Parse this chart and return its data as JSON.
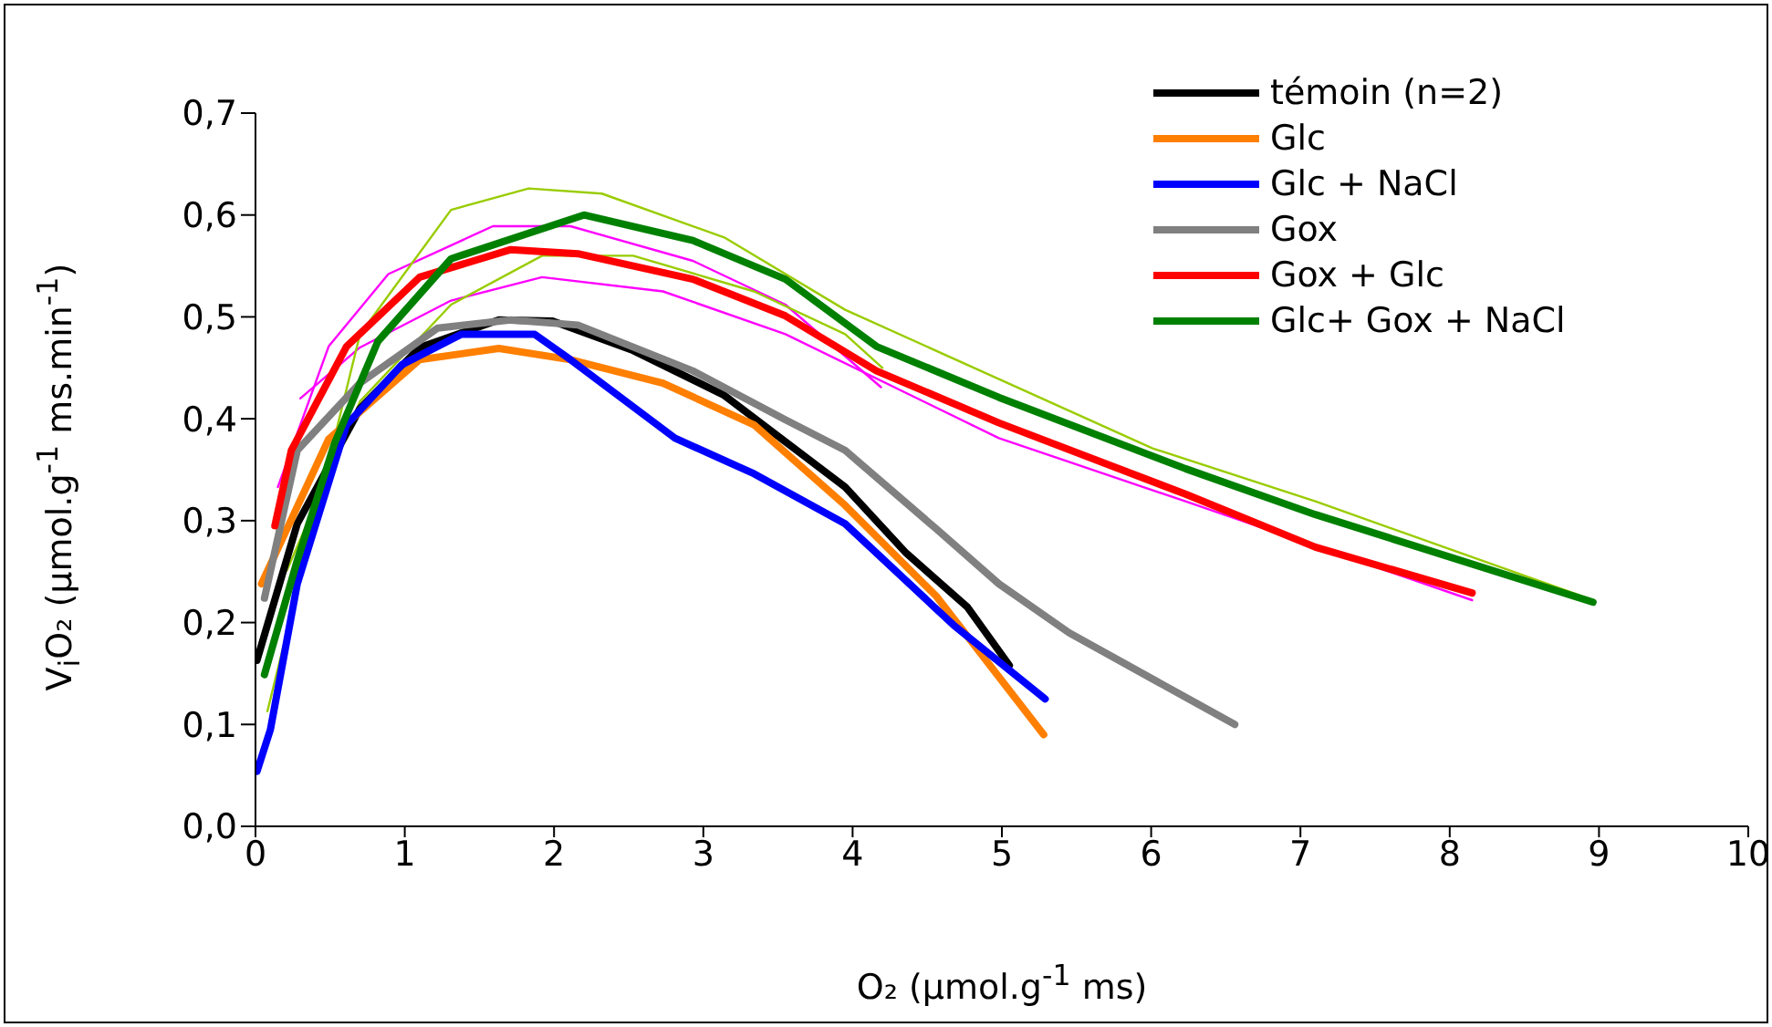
{
  "chart_data": {
    "type": "line",
    "xlabel": "O₂ (µmol.g$^{-1}$ ms)",
    "ylabel": "V$_{i}$O₂ (µmol.g$^{-1}$ ms.min$^{-1}$)",
    "xlim": [
      0,
      10
    ],
    "xticks": [
      0,
      1,
      2,
      3,
      4,
      5,
      6,
      7,
      8,
      9,
      10
    ],
    "ylim": [
      0,
      0.7
    ],
    "yticks": [
      {
        "value": 0,
        "label": "0,0"
      },
      {
        "value": 0.1,
        "label": "0,1"
      },
      {
        "value": 0.2,
        "label": "0,2"
      },
      {
        "value": 0.3,
        "label": "0,3"
      },
      {
        "value": 0.4,
        "label": "0,4"
      },
      {
        "value": 0.5,
        "label": "0,5"
      },
      {
        "value": 0.6,
        "label": "0,6"
      },
      {
        "value": 0.7,
        "label": "0,7"
      }
    ],
    "grid": false,
    "legend": "top right",
    "marker": "none",
    "line_style": "solid",
    "series": [
      {
        "color": "#ff00ff",
        "x": [
          0.15,
          0.49,
          0.89,
          1.59,
          2.11,
          2.93,
          3.55,
          4.19
        ],
        "values": [
          0.333,
          0.471,
          0.542,
          0.589,
          0.589,
          0.555,
          0.512,
          0.431
        ]
      },
      {
        "color": "#ff00ff",
        "x": [
          0.3,
          0.7,
          1.31,
          1.92,
          2.73,
          3.55,
          4.98,
          6.23,
          8.15
        ],
        "values": [
          0.42,
          0.47,
          0.516,
          0.539,
          0.525,
          0.483,
          0.381,
          0.319,
          0.222
        ]
      },
      {
        "color": "#99cc00",
        "x": [
          0.08,
          0.7,
          1.31,
          1.83,
          2.32,
          3.14,
          3.95,
          4.98,
          6.01,
          7.1,
          8.96
        ],
        "values": [
          0.113,
          0.483,
          0.605,
          0.626,
          0.621,
          0.578,
          0.507,
          0.439,
          0.371,
          0.319,
          0.222
        ]
      },
      {
        "color": "#99cc00",
        "x": [
          0.21,
          0.7,
          1.31,
          1.92,
          2.53,
          3.34,
          3.95,
          4.2
        ],
        "values": [
          0.251,
          0.417,
          0.512,
          0.56,
          0.56,
          0.525,
          0.483,
          0.45
        ]
      },
      {
        "name": "témoin (n=2)",
        "color": "#000000",
        "x": [
          0.01,
          0.28,
          0.7,
          1.1,
          1.63,
          1.99,
          2.53,
          3.14,
          3.95,
          4.36,
          4.77,
          5.05
        ],
        "values": [
          0.163,
          0.297,
          0.41,
          0.47,
          0.497,
          0.496,
          0.467,
          0.423,
          0.333,
          0.268,
          0.215,
          0.158
        ]
      },
      {
        "name": "Glc",
        "color": "#ff7f00",
        "x": [
          0.04,
          0.49,
          1.1,
          1.63,
          2.11,
          2.73,
          3.34,
          3.95,
          4.56,
          5.28
        ],
        "values": [
          0.238,
          0.38,
          0.458,
          0.469,
          0.458,
          0.435,
          0.394,
          0.315,
          0.226,
          0.09
        ]
      },
      {
        "name": "Glc + NaCl",
        "color": "#0000ff",
        "x": [
          0.01,
          0.1,
          0.28,
          0.61,
          0.98,
          1.38,
          1.87,
          2.11,
          2.81,
          3.34,
          3.95,
          4.68,
          5.29
        ],
        "values": [
          0.054,
          0.095,
          0.238,
          0.394,
          0.453,
          0.483,
          0.483,
          0.458,
          0.381,
          0.346,
          0.297,
          0.197,
          0.125
        ]
      },
      {
        "name": "Gox",
        "color": "#808080",
        "x": [
          0.06,
          0.28,
          0.7,
          1.22,
          1.71,
          2.16,
          2.93,
          3.55,
          3.95,
          4.56,
          4.98,
          5.45,
          6.56
        ],
        "values": [
          0.224,
          0.369,
          0.435,
          0.489,
          0.497,
          0.492,
          0.447,
          0.399,
          0.369,
          0.292,
          0.238,
          0.19,
          0.1
        ]
      },
      {
        "name": "Gox + Glc",
        "color": "#ff0000",
        "x": [
          0.13,
          0.24,
          0.61,
          1.1,
          1.71,
          2.16,
          2.93,
          3.55,
          4.16,
          4.98,
          6.23,
          7.1,
          8.15
        ],
        "values": [
          0.295,
          0.369,
          0.471,
          0.539,
          0.566,
          0.562,
          0.537,
          0.501,
          0.447,
          0.396,
          0.326,
          0.274,
          0.229
        ]
      },
      {
        "name": "Glc+ Gox + NaCl",
        "color": "#008000",
        "x": [
          0.06,
          0.28,
          0.53,
          0.82,
          1.31,
          2.2,
          2.93,
          3.55,
          4.16,
          4.98,
          6.23,
          7.1,
          8.96
        ],
        "values": [
          0.149,
          0.261,
          0.376,
          0.476,
          0.557,
          0.6,
          0.575,
          0.537,
          0.471,
          0.421,
          0.351,
          0.306,
          0.22
        ]
      }
    ]
  }
}
